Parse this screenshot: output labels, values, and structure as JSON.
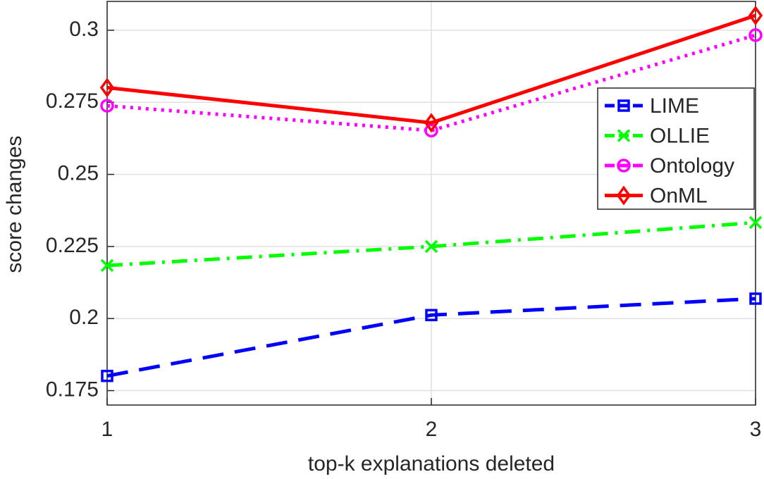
{
  "chart_data": {
    "type": "line",
    "x_label": "top-k explanations deleted",
    "y_label": "score changes",
    "x": [
      1,
      2,
      3
    ],
    "xlim": [
      1,
      3
    ],
    "xticks": [
      1,
      2,
      3
    ],
    "ylim": [
      0.17,
      0.31
    ],
    "yticks": [
      0.175,
      0.2,
      0.225,
      0.25,
      0.275,
      0.3
    ],
    "grid": true,
    "legend_position": "upper-right",
    "series": [
      {
        "name": "LIME",
        "color": "#0000ff",
        "line_style": "dashed",
        "marker": "square",
        "values": [
          0.1801,
          0.2012,
          0.2069
        ]
      },
      {
        "name": "OLLIE",
        "color": "#00ff00",
        "line_style": "dashdot",
        "marker": "x",
        "values": [
          0.2184,
          0.225,
          0.2333
        ]
      },
      {
        "name": "Ontology",
        "color": "#ff00ff",
        "line_style": "dotted",
        "marker": "circle",
        "values": [
          0.2738,
          0.2652,
          0.2983
        ]
      },
      {
        "name": "OnML",
        "color": "#ff0000",
        "line_style": "solid",
        "marker": "diamond",
        "values": [
          0.2801,
          0.2679,
          0.3051
        ]
      }
    ]
  }
}
